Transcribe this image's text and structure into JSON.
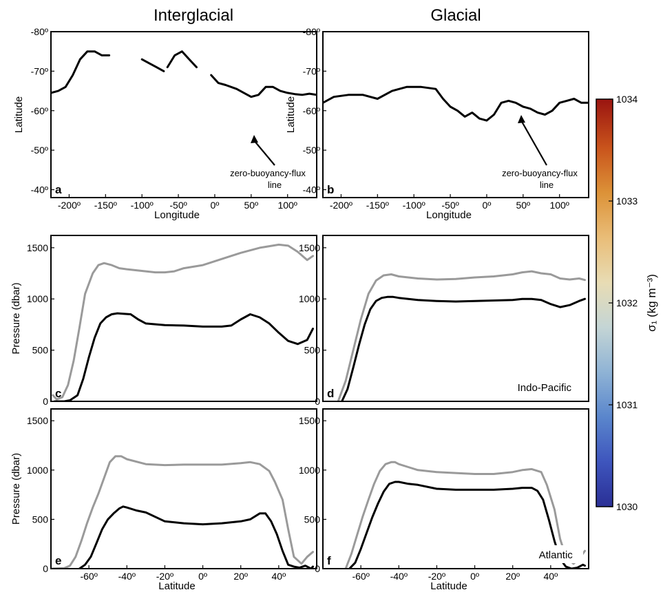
{
  "columns": {
    "left": "Interglacial",
    "right": "Glacial"
  },
  "colorbar": {
    "min": 1030,
    "max": 1034,
    "ticks": [
      "1034",
      "1033",
      "1032",
      "1031",
      "1030"
    ],
    "label": "σ₁ (kg m⁻³)",
    "colors": [
      "#2a2f95",
      "#3e55bd",
      "#5a86cc",
      "#8fb3d5",
      "#c4d5d5",
      "#e8dcb4",
      "#e9bd78",
      "#dc9238",
      "#c9541c",
      "#9a1410"
    ]
  },
  "chart_data": [
    {
      "id": "a",
      "type": "heatmap",
      "panel_letter": "a",
      "column": "Interglacial",
      "xlabel": "Longitude",
      "ylabel": "Latitude",
      "xticks": [
        "-200º",
        "-150º",
        "-100º",
        "-50º",
        "0º",
        "50º",
        "100º"
      ],
      "yticks": [
        "-40º",
        "-50º",
        "-60º",
        "-70º",
        "-80º"
      ],
      "xlim": [
        -225,
        140
      ],
      "ylim": [
        -80,
        -38
      ],
      "annotation": [
        "zero-buoyancy-flux",
        "line"
      ],
      "line": {
        "x": [
          -225,
          -215,
          -205,
          -195,
          -185,
          -175,
          -165,
          -155,
          -145
        ],
        "y": [
          -64.5,
          -65,
          -66,
          -69,
          -73,
          -75,
          -75,
          -74,
          -74
        ]
      },
      "line_segments": [
        {
          "x": [
            -225,
            -215,
            -205,
            -195,
            -185,
            -175,
            -165,
            -155,
            -145
          ],
          "y": [
            -64.5,
            -65,
            -66,
            -69,
            -73,
            -75,
            -75,
            -74,
            -74
          ]
        },
        {
          "x": [
            -100,
            -90,
            -80,
            -70
          ],
          "y": [
            -73,
            -72,
            -71,
            -70
          ]
        },
        {
          "x": [
            -65,
            -55,
            -45,
            -35,
            -25
          ],
          "y": [
            -71,
            -74,
            -75,
            -73,
            -71
          ]
        },
        {
          "x": [
            -5,
            5,
            15,
            30,
            40,
            50,
            60,
            70,
            80,
            90,
            100,
            110,
            120,
            130,
            140
          ],
          "y": [
            -69,
            -67,
            -66.5,
            -65.5,
            -64.5,
            -63.5,
            -64,
            -66,
            -66,
            -65,
            -64.5,
            -64.2,
            -64,
            -64.3,
            -64
          ]
        }
      ]
    },
    {
      "id": "b",
      "type": "heatmap",
      "panel_letter": "b",
      "column": "Glacial",
      "xlabel": "Longitude",
      "ylabel": "Latitude",
      "xticks": [
        "-200º",
        "-150º",
        "-100º",
        "-50º",
        "0º",
        "50º",
        "100º"
      ],
      "yticks": [
        "-40º",
        "-50º",
        "-60º",
        "-70º",
        "-80º"
      ],
      "xlim": [
        -225,
        140
      ],
      "ylim": [
        -80,
        -38
      ],
      "annotation": [
        "zero-buoyancy-flux",
        "line"
      ],
      "line": {
        "x": [
          -225,
          -210,
          -190,
          -170,
          -150,
          -130,
          -110,
          -90,
          -70,
          -60,
          -50,
          -40,
          -30,
          -20,
          -10,
          0,
          10,
          20,
          30,
          40,
          50,
          60,
          70,
          80,
          90,
          100,
          110,
          120,
          130,
          140
        ],
        "y": [
          -62,
          -63.5,
          -64,
          -64,
          -63,
          -65,
          -66,
          -66,
          -65.5,
          -63,
          -61,
          -60,
          -58.5,
          -59.5,
          -58,
          -57.5,
          -59,
          -62,
          -62.5,
          -62,
          -61,
          -60.5,
          -59.5,
          -59,
          -60,
          -62,
          -62.5,
          -63,
          -62,
          -62
        ]
      }
    },
    {
      "id": "c",
      "type": "heatmap",
      "panel_letter": "c",
      "column": "Interglacial",
      "ylabel": "Pressure (dbar)",
      "xlabel": "",
      "yticks": [
        "0",
        "500",
        "1000",
        "1500"
      ],
      "xlim": [
        -80,
        60
      ],
      "ylim": [
        1620,
        0
      ],
      "series": [
        {
          "color": "black",
          "x": [
            -78,
            -73,
            -70,
            -66,
            -63,
            -60,
            -57,
            -54,
            -51,
            -48,
            -45,
            -42,
            -38,
            -34,
            -30,
            -20,
            -10,
            0,
            10,
            15,
            20,
            25,
            30,
            35,
            40,
            45,
            50,
            55,
            58
          ],
          "y": [
            0,
            0,
            10,
            60,
            220,
            430,
            620,
            760,
            820,
            850,
            860,
            855,
            850,
            800,
            760,
            745,
            740,
            730,
            730,
            740,
            800,
            850,
            820,
            760,
            670,
            590,
            560,
            600,
            710
          ]
        },
        {
          "color": "grey",
          "x": [
            -79,
            -77,
            -74,
            -71,
            -68,
            -65,
            -62,
            -58,
            -55,
            -52,
            -48,
            -44,
            -40,
            -35,
            -30,
            -25,
            -20,
            -15,
            -10,
            0,
            10,
            20,
            30,
            40,
            45,
            50,
            55,
            58
          ],
          "y": [
            60,
            20,
            40,
            160,
            400,
            720,
            1050,
            1250,
            1330,
            1350,
            1330,
            1300,
            1290,
            1280,
            1270,
            1260,
            1260,
            1270,
            1300,
            1330,
            1390,
            1450,
            1500,
            1530,
            1520,
            1460,
            1380,
            1420
          ]
        }
      ]
    },
    {
      "id": "d",
      "type": "heatmap",
      "panel_letter": "d",
      "column": "Glacial",
      "basin_label": "Indo-Pacific",
      "ylabel": "",
      "xlabel": "",
      "yticks": [
        "0",
        "500",
        "1000",
        "1500"
      ],
      "xlim": [
        -80,
        60
      ],
      "ylim": [
        1620,
        0
      ],
      "series": [
        {
          "color": "black",
          "x": [
            -70,
            -67,
            -64,
            -61,
            -58,
            -55,
            -52,
            -49,
            -46,
            -43,
            -40,
            -30,
            -20,
            -10,
            0,
            10,
            20,
            25,
            30,
            35,
            40,
            45,
            50,
            55,
            58
          ],
          "y": [
            0,
            120,
            330,
            550,
            750,
            900,
            980,
            1010,
            1020,
            1020,
            1010,
            990,
            980,
            975,
            980,
            985,
            990,
            1000,
            1000,
            990,
            950,
            920,
            940,
            980,
            1000
          ]
        },
        {
          "color": "grey",
          "x": [
            -72,
            -68,
            -64,
            -60,
            -56,
            -52,
            -48,
            -44,
            -40,
            -30,
            -20,
            -10,
            0,
            10,
            20,
            25,
            30,
            35,
            40,
            45,
            50,
            55,
            58
          ],
          "y": [
            0,
            200,
            500,
            800,
            1050,
            1180,
            1230,
            1240,
            1220,
            1200,
            1190,
            1195,
            1210,
            1220,
            1240,
            1260,
            1270,
            1250,
            1240,
            1200,
            1190,
            1200,
            1185
          ]
        }
      ]
    },
    {
      "id": "e",
      "type": "heatmap",
      "panel_letter": "e",
      "column": "Interglacial",
      "ylabel": "Pressure (dbar)",
      "xlabel": "Latitude",
      "xticks": [
        "-60º",
        "-40º",
        "-20º",
        "0º",
        "20º",
        "40º"
      ],
      "yticks": [
        "0",
        "500",
        "1000",
        "1500"
      ],
      "xlim": [
        -80,
        60
      ],
      "ylim": [
        1620,
        0
      ],
      "series": [
        {
          "color": "black",
          "x": [
            -65,
            -62,
            -59,
            -56,
            -53,
            -50,
            -47,
            -44,
            -42,
            -40,
            -35,
            -30,
            -20,
            -10,
            0,
            10,
            20,
            25,
            30,
            33,
            36,
            39,
            42,
            45,
            48,
            51,
            54,
            57,
            58
          ],
          "y": [
            0,
            40,
            120,
            260,
            400,
            500,
            560,
            610,
            630,
            620,
            590,
            570,
            480,
            460,
            450,
            460,
            480,
            500,
            560,
            560,
            480,
            350,
            180,
            40,
            20,
            10,
            30,
            0,
            20
          ]
        },
        {
          "color": "grey",
          "x": [
            -80,
            -73,
            -70,
            -67,
            -64,
            -61,
            -58,
            -55,
            -52,
            -49,
            -46,
            -43,
            -40,
            -30,
            -20,
            -10,
            0,
            10,
            20,
            25,
            30,
            35,
            38,
            42,
            45,
            48,
            52,
            55,
            58
          ],
          "y": [
            0,
            5,
            30,
            120,
            280,
            460,
            620,
            760,
            920,
            1080,
            1140,
            1140,
            1110,
            1060,
            1050,
            1055,
            1055,
            1055,
            1070,
            1080,
            1060,
            990,
            880,
            700,
            400,
            120,
            50,
            120,
            170
          ]
        }
      ]
    },
    {
      "id": "f",
      "type": "heatmap",
      "panel_letter": "f",
      "column": "Glacial",
      "basin_label": "Atlantic",
      "ylabel": "",
      "xlabel": "Latitude",
      "xticks": [
        "-60º",
        "-40º",
        "-20º",
        "0º",
        "20º",
        "40º"
      ],
      "yticks": [
        "0",
        "500",
        "1000",
        "1500"
      ],
      "xlim": [
        -80,
        60
      ],
      "ylim": [
        1620,
        0
      ],
      "series": [
        {
          "color": "black",
          "x": [
            -66,
            -63,
            -60,
            -57,
            -54,
            -51,
            -48,
            -45,
            -42,
            -40,
            -35,
            -30,
            -20,
            -10,
            0,
            10,
            20,
            25,
            30,
            33,
            36,
            39,
            42,
            45,
            48,
            51,
            54,
            57,
            58
          ],
          "y": [
            0,
            60,
            200,
            360,
            520,
            660,
            780,
            860,
            880,
            880,
            860,
            850,
            810,
            800,
            800,
            800,
            810,
            820,
            820,
            790,
            700,
            500,
            280,
            100,
            20,
            0,
            10,
            40,
            30
          ]
        },
        {
          "color": "grey",
          "x": [
            -68,
            -65,
            -62,
            -59,
            -56,
            -53,
            -50,
            -47,
            -44,
            -42,
            -40,
            -35,
            -30,
            -20,
            -10,
            0,
            10,
            20,
            25,
            30,
            35,
            38,
            42,
            45,
            48,
            52,
            55,
            58
          ],
          "y": [
            0,
            150,
            340,
            530,
            700,
            860,
            990,
            1060,
            1080,
            1080,
            1060,
            1030,
            1000,
            980,
            970,
            960,
            960,
            980,
            1000,
            1010,
            980,
            850,
            600,
            300,
            120,
            50,
            100,
            180
          ]
        }
      ]
    }
  ]
}
